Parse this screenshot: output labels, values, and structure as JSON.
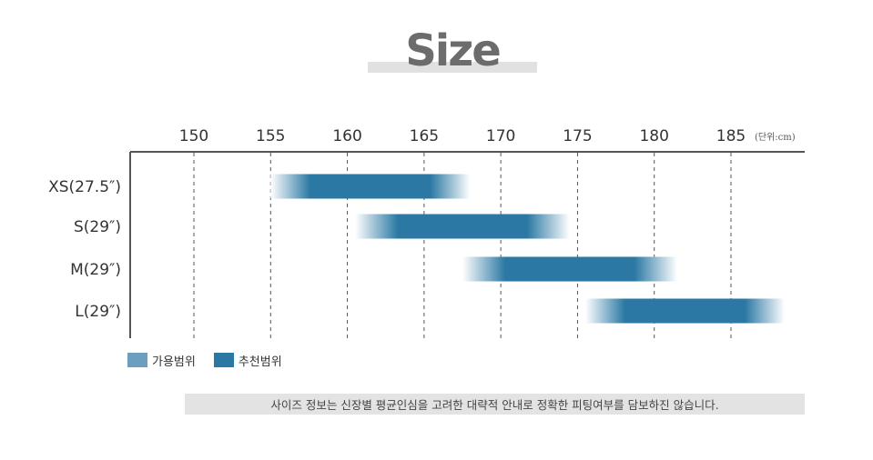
{
  "title": "Size",
  "chart_data": {
    "type": "bar",
    "orientation": "horizontal",
    "x_ticks": [
      150,
      155,
      160,
      165,
      170,
      175,
      180,
      185
    ],
    "x_unit_label": "(단위:cm)",
    "xlim": [
      145,
      190
    ],
    "grid": "vertical-dashed",
    "categories": [
      "XS(27.5″)",
      "S(29″)",
      "M(29″)",
      "L(29″)"
    ],
    "ranges": [
      {
        "category": "XS(27.5″)",
        "start": 155,
        "end": 168
      },
      {
        "category": "S(29″)",
        "start": 160.5,
        "end": 174.5
      },
      {
        "category": "M(29″)",
        "start": 167.5,
        "end": 181.5
      },
      {
        "category": "L(29″)",
        "start": 175.5,
        "end": 188.5
      }
    ],
    "legend": [
      {
        "label": "가용범위",
        "color": "#6a9fc0"
      },
      {
        "label": "추천범위",
        "color": "#2a78a3"
      }
    ],
    "legend_position": "bottom-left",
    "colors": {
      "core": "#2a78a3",
      "fade": "#ffffff",
      "axis": "#555555",
      "grid": "#555555"
    }
  },
  "footnote": "사이즈 정보는 신장별 평균인심을 고려한 대략적 안내로 정확한 피팅여부를 담보하진 않습니다."
}
